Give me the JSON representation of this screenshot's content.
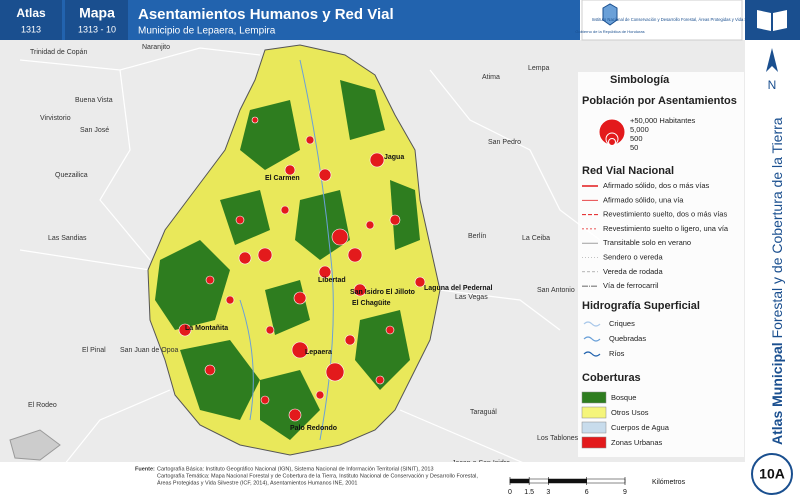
{
  "header": {
    "atlas_label": "Atlas",
    "atlas_code": "1313",
    "map_label": "Mapa",
    "map_code": "1313 - 10",
    "title": "Asentamientos Humanos y Red Vial",
    "subtitle": "Municipio de Lepaera, Lempira",
    "logos": [
      "Gobierno de la República de Honduras",
      "Instituto Nacional de Conservación y Desarrollo Forestal, Áreas Protegidas y Vida Silvestre ICF"
    ]
  },
  "side": {
    "north": "N",
    "title_bold": "Atlas Municipal",
    "title_rest": "Forestal y de Cobertura de la Tierra",
    "page_code": "10A"
  },
  "map": {
    "places": [
      "Trinidad de Copán",
      "Naranjito",
      "Atima",
      "Lempa",
      "Buena Vista",
      "Virvistorio",
      "San José",
      "Quezailica",
      "San Pedro",
      "Las Sandias",
      "Berlín",
      "La Ceiba",
      "El Pinal",
      "San Juan de Opoa",
      "San Antonio",
      "Las Vegas",
      "El Rodeo",
      "Taraguál",
      "Los Tablones",
      "Jacan o San Isidro"
    ],
    "inner_places": [
      "Jagua",
      "El Carmen",
      "Libertad",
      "San Isidro El Jilloto",
      "El Chagüite",
      "Laguna del Pedernal",
      "La Montañita",
      "Lepaera",
      "Palo Redondo"
    ]
  },
  "legend": {
    "title": "Simbología",
    "population_title": "Población por Asentamientos",
    "population": [
      "+50,000 Habitantes",
      "5,000",
      "500",
      "50"
    ],
    "roads_title": "Red Vial Nacional",
    "roads": [
      "Afirmado sólido, dos o más vías",
      "Afirmado sólido, una vía",
      "Revestimiento suelto, dos o más vías",
      "Revestimiento suelto o ligero, una vía",
      "Transitable solo en verano",
      "Sendero o vereda",
      "Vereda de rodada",
      "Vía de ferrocarril"
    ],
    "hydro_title": "Hidrografía Superficial",
    "hydro": [
      "Criques",
      "Quebradas",
      "Ríos"
    ],
    "cover_title": "Coberturas",
    "cover": [
      "Bosque",
      "Otros Usos",
      "Cuerpos de Agua",
      "Zonas Urbanas"
    ]
  },
  "sources": {
    "label": "Fuente:",
    "lines": [
      "Cartografía Básica: Instituto Geográfico Nacional (IGN), Sistema Nacional de Información Territorial (SINIT), 2013",
      "Cartografía Temática: Mapa Nacional Forestal y de Cobertura de la Tierra, Instituto Nacional de Conservación y Desarrollo Forestal,",
      "Áreas Protegidas y Vida Silvestre (ICF, 2014), Asentamientos Humanos INE, 2001"
    ]
  },
  "scale": {
    "ticks": [
      0,
      1.5,
      3,
      6,
      9
    ],
    "unit": "Kilómetros"
  }
}
